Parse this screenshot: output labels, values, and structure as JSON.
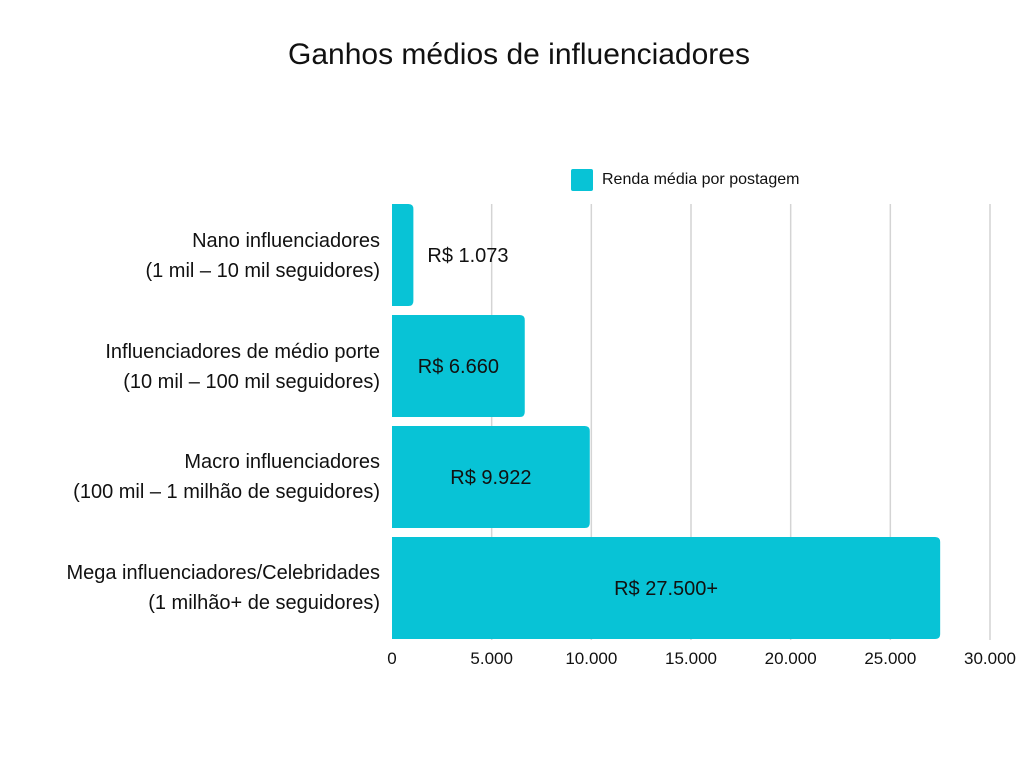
{
  "chart_data": {
    "type": "bar",
    "orientation": "horizontal",
    "title": "Ganhos médios de influenciadores",
    "categories": [
      [
        "Nano influenciadores",
        "(1 mil – 10 mil seguidores)"
      ],
      [
        "Influenciadores de médio porte",
        "(10 mil – 100 mil seguidores)"
      ],
      [
        "Macro influenciadores",
        "(100 mil – 1 milhão de seguidores)"
      ],
      [
        "Mega influenciadores/Celebridades",
        "(1 milhão+ de seguidores)"
      ]
    ],
    "series": [
      {
        "name": "Renda média por postagem",
        "values": [
          1073,
          6660,
          9922,
          27500
        ],
        "data_labels": [
          "R$ 1.073",
          "R$ 6.660",
          "R$ 9.922",
          "R$ 27.500+"
        ],
        "color": "#08C3D6"
      }
    ],
    "xlim": [
      0,
      30000
    ],
    "xticks": [
      0,
      5000,
      10000,
      15000,
      20000,
      25000,
      30000
    ],
    "xtick_labels": [
      "0",
      "5.000",
      "10.000",
      "15.000",
      "20.000",
      "25.000",
      "30.000"
    ],
    "xlabel": "",
    "ylabel": "",
    "grid": "vertical",
    "gridline_color": "#d4d4d4",
    "legend_position": "top-right"
  }
}
